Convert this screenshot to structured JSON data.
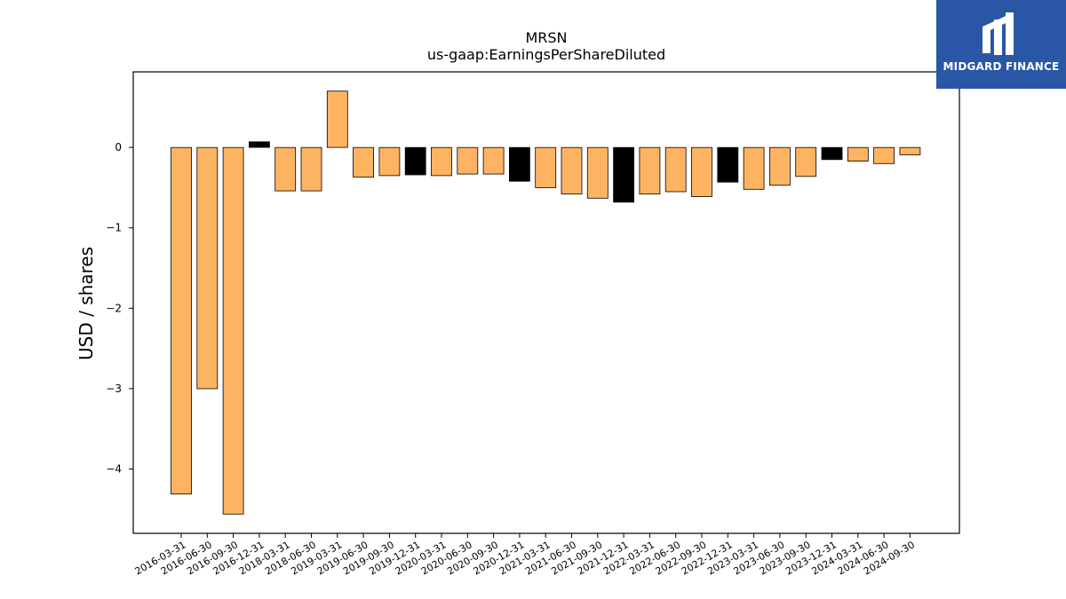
{
  "chart_data": {
    "type": "bar",
    "title": "MRSN",
    "subtitle": "us-gaap:EarningsPerShareDiluted",
    "xlabel": "",
    "ylabel": "USD / shares",
    "ylim": [
      -4.8,
      0.94
    ],
    "yticks": [
      0,
      -1,
      -2,
      -3,
      -4
    ],
    "grid": false,
    "categories": [
      "2016-03-31",
      "2016-06-30",
      "2016-09-30",
      "2016-12-31",
      "2018-03-31",
      "2018-06-30",
      "2019-03-31",
      "2019-06-30",
      "2019-09-30",
      "2019-12-31",
      "2020-03-31",
      "2020-06-30",
      "2020-09-30",
      "2020-12-31",
      "2021-03-31",
      "2021-06-30",
      "2021-09-30",
      "2021-12-31",
      "2022-03-31",
      "2022-06-30",
      "2022-09-30",
      "2022-12-31",
      "2023-03-31",
      "2023-06-30",
      "2023-09-30",
      "2023-12-31",
      "2024-03-31",
      "2024-06-30",
      "2024-09-30"
    ],
    "values": [
      -4.31,
      -3.0,
      -4.56,
      0.07,
      -0.54,
      -0.54,
      0.7,
      -0.37,
      -0.35,
      -0.34,
      -0.35,
      -0.33,
      -0.33,
      -0.42,
      -0.5,
      -0.58,
      -0.63,
      -0.68,
      -0.58,
      -0.55,
      -0.61,
      -0.43,
      -0.52,
      -0.47,
      -0.36,
      -0.15,
      -0.17,
      -0.2,
      -0.09
    ],
    "highlight": [
      false,
      false,
      false,
      true,
      false,
      false,
      false,
      false,
      false,
      true,
      false,
      false,
      false,
      true,
      false,
      false,
      false,
      true,
      false,
      false,
      false,
      true,
      false,
      false,
      false,
      true,
      false,
      false,
      false
    ],
    "colors": {
      "bar": "#fdb462",
      "highlight": "#000000",
      "edge": "#000000"
    }
  },
  "logo": {
    "text": "MIDGARD FINANCE",
    "background": "#2a56a6"
  }
}
